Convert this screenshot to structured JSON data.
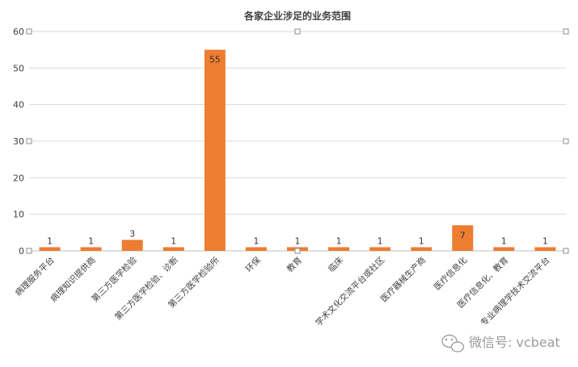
{
  "chart_data": {
    "type": "bar",
    "title": "各家企业涉足的业务范围",
    "categories": [
      "病理服务平台",
      "病理知识提供商",
      "第三方医学检验",
      "第三方医学检验、诊断",
      "第三方医学检验所",
      "环保",
      "教育",
      "临床",
      "学术文化交流平台或社区",
      "医疗器械生产商",
      "医疗信息化",
      "医疗信息化、教育",
      "专业病理学技术交流平台"
    ],
    "values": [
      1,
      1,
      3,
      1,
      55,
      1,
      1,
      1,
      1,
      1,
      7,
      1,
      1
    ],
    "data_labels": [
      "1",
      "1",
      "3",
      "1",
      "55",
      "1",
      "1",
      "1",
      "1",
      "1",
      "7",
      "1",
      "1"
    ],
    "yticks": [
      "0",
      "10",
      "20",
      "30",
      "40",
      "50",
      "60"
    ],
    "ylim": [
      0,
      60
    ],
    "grid": true,
    "legend": "none",
    "bar_color": "#ED7D31",
    "grid_color": "#D9D9D9"
  },
  "watermark": {
    "text": "微信号: vcbeat",
    "icon": "wechat-icon"
  }
}
